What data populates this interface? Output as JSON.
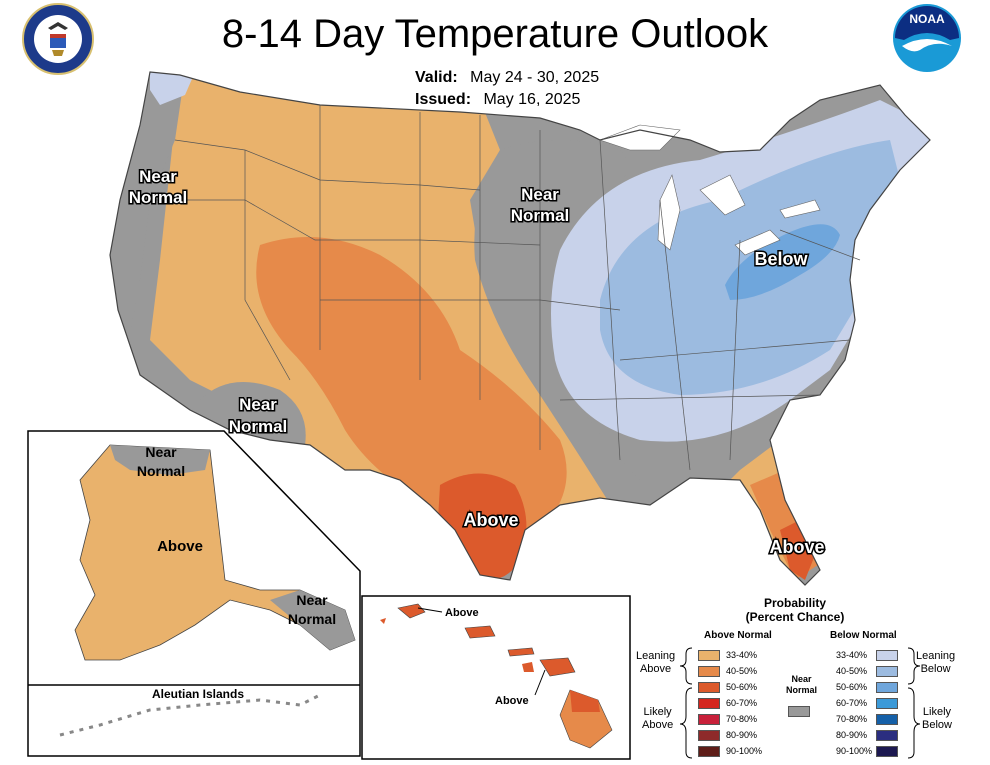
{
  "title": "8-14 Day Temperature Outlook",
  "valid_label": "Valid:",
  "valid_value": "May 24 - 30, 2025",
  "issued_label": "Issued:",
  "issued_value": "May 16, 2025",
  "logos": {
    "left": "Department of Commerce seal",
    "right": "NOAA logo",
    "noaa_text": "NOAA"
  },
  "map_labels": {
    "west_near": [
      "Near",
      "Normal"
    ],
    "central_near": [
      "Near",
      "Normal"
    ],
    "southwest_near": [
      "Near",
      "Normal"
    ],
    "below": "Below",
    "texas_above": "Above",
    "florida_above": "Above"
  },
  "alaska": {
    "near_north": [
      "Near",
      "Normal"
    ],
    "above": "Above",
    "near_southeast": [
      "Near",
      "Normal"
    ],
    "aleutian_title": "Aleutian Islands"
  },
  "hawaii": {
    "above_1": "Above",
    "above_2": "Above"
  },
  "colors": {
    "near_normal": "#999999",
    "above_33_40": "#e9b26c",
    "above_40_50": "#e68a4a",
    "above_50_60": "#dc5a2c",
    "below_33_40": "#c8d2ea",
    "below_40_50": "#9cbbe0",
    "below_50_60": "#6fa6dc",
    "water": "#ffffff"
  },
  "legend": {
    "title_line1": "Probability",
    "title_line2": "(Percent Chance)",
    "above_header": "Above Normal",
    "below_header": "Below Normal",
    "near_label": [
      "Near",
      "Normal"
    ],
    "near_color": "#999999",
    "leaning_above": [
      "Leaning",
      "Above"
    ],
    "likely_above": [
      "Likely",
      "Above"
    ],
    "leaning_below": [
      "Leaning",
      "Below"
    ],
    "likely_below": [
      "Likely",
      "Below"
    ],
    "above_rows": [
      {
        "label": "33-40%",
        "color": "#e9b26c"
      },
      {
        "label": "40-50%",
        "color": "#e68a4a"
      },
      {
        "label": "50-60%",
        "color": "#dc5a2c"
      },
      {
        "label": "60-70%",
        "color": "#d4261e"
      },
      {
        "label": "70-80%",
        "color": "#c8203a"
      },
      {
        "label": "80-90%",
        "color": "#8e2a2a"
      },
      {
        "label": "90-100%",
        "color": "#5e1d18"
      }
    ],
    "below_rows": [
      {
        "label": "33-40%",
        "color": "#c8d2ea"
      },
      {
        "label": "40-50%",
        "color": "#9cbbe0"
      },
      {
        "label": "50-60%",
        "color": "#6fa6dc"
      },
      {
        "label": "60-70%",
        "color": "#3c9ad8"
      },
      {
        "label": "70-80%",
        "color": "#1560a8"
      },
      {
        "label": "80-90%",
        "color": "#2b2e80"
      },
      {
        "label": "90-100%",
        "color": "#1c1850"
      }
    ]
  }
}
